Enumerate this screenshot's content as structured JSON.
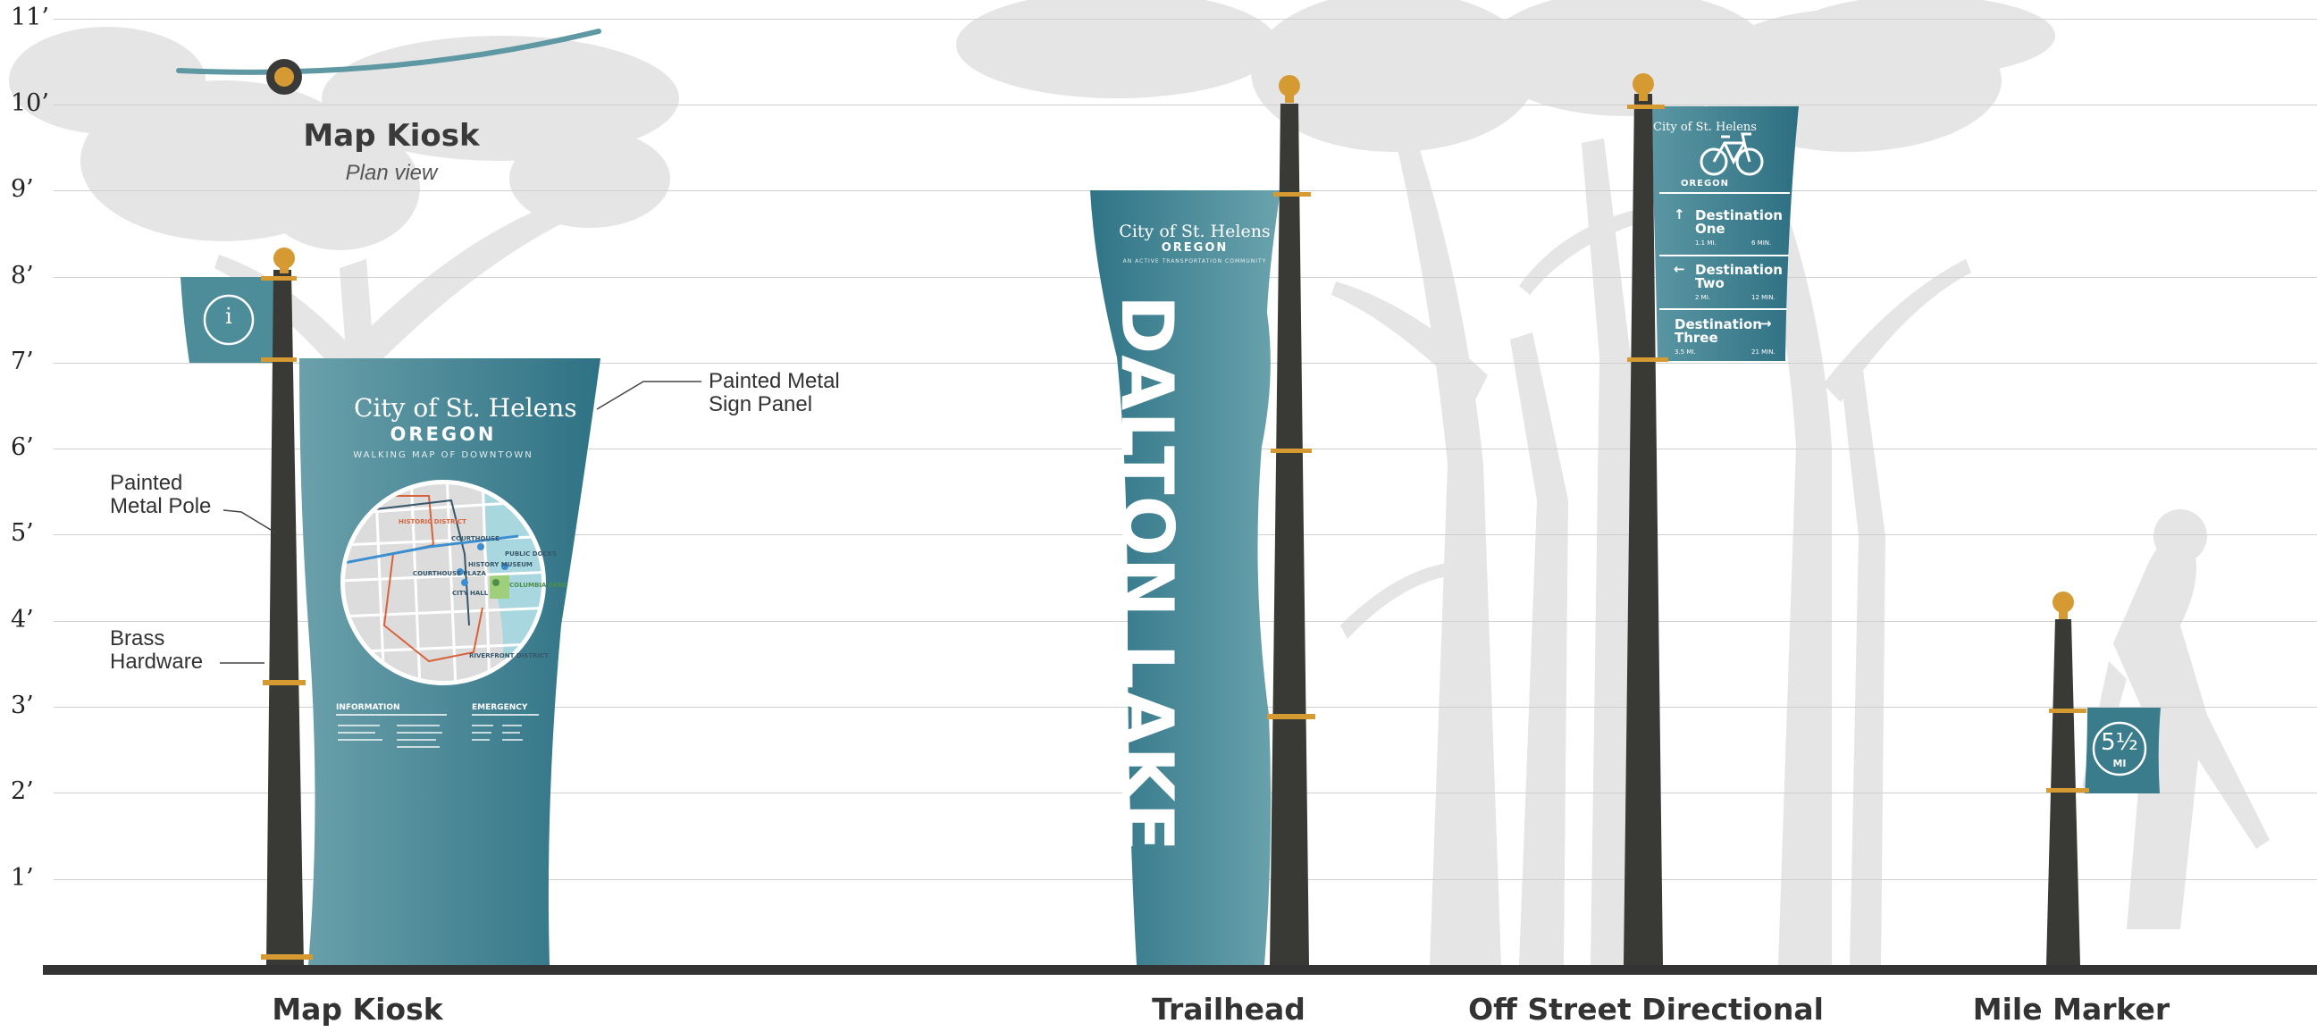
{
  "height_labels": [
    "11’",
    "10’",
    "9’",
    "8’",
    "7’",
    "6’",
    "5’",
    "4’",
    "3’",
    "2’",
    "1’"
  ],
  "plan_view": {
    "title": "Map Kiosk",
    "subtitle": "Plan view"
  },
  "callouts": {
    "panel": [
      "Painted Metal",
      "Sign Panel"
    ],
    "pole": [
      "Painted",
      "Metal Pole"
    ],
    "hardware": [
      "Brass",
      "Hardware"
    ]
  },
  "map_kiosk": {
    "info_symbol": "i",
    "city": "City of St. Helens",
    "state": "OREGON",
    "subtitle": "WALKING MAP OF DOWNTOWN",
    "map_labels": [
      "HISTORIC DISTRICT",
      "COURTHOUSE",
      "PUBLIC DOCKS",
      "HISTORY MUSEUM",
      "COURTHOUSE PLAZA",
      "CITY HALL",
      "COLUMBIA PARK",
      "RIVERFRONT DISTRICT"
    ],
    "footer": {
      "info_heading": "INFORMATION",
      "emergency_heading": "EMERGENCY"
    }
  },
  "trailhead": {
    "city": "City of St. Helens",
    "state": "OREGON",
    "subtitle": "AN ACTIVE TRANSPORTATION COMMUNITY",
    "name": "DALTON LAKE"
  },
  "off_street": {
    "city": "City of St. Helens",
    "state": "OREGON",
    "destinations": [
      {
        "arrow": "↑",
        "line1": "Destination",
        "line2": "One",
        "distance": "1.1 MI.",
        "time": "6 MIN."
      },
      {
        "arrow": "←",
        "line1": "Destination",
        "line2": "Two",
        "distance": "2 MI.",
        "time": "12 MIN."
      },
      {
        "arrow": "→",
        "line1": "Destination",
        "line2": "Three",
        "distance": "3.5 MI.",
        "time": "21 MIN."
      }
    ]
  },
  "mile_marker": {
    "number": "5½",
    "unit": "MI"
  },
  "sign_titles": [
    "Map Kiosk",
    "Trailhead",
    "Off Street Directional",
    "Mile Marker"
  ],
  "colors": {
    "teal": "#3a7c8c",
    "teal_dark": "#2d6f82",
    "pole": "#393936",
    "brass": "#d69a33",
    "tree": "#e4e4e4",
    "ground": "#333333"
  }
}
